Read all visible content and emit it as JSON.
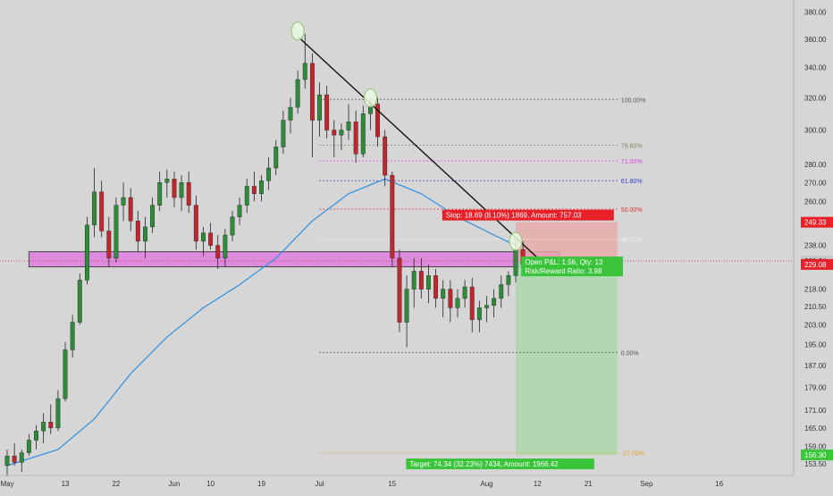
{
  "chart_data": {
    "type": "candlestick",
    "title": "",
    "symbol": "",
    "colors": {
      "up": "#2e8b3a",
      "down": "#c0262c",
      "wick": "#222222",
      "ma": "#2f8fe0",
      "trendline": "#111111",
      "zone_fill": "#e070e0",
      "stop_zone": "#e8a8a8",
      "target_zone": "#a8d8a8",
      "background": "#d6d6d6"
    },
    "x_axis": {
      "tick_labels": [
        "May",
        "13",
        "22",
        "Jun",
        "10",
        "19",
        "Jul",
        "15",
        "Aug",
        "12",
        "21",
        "Sep",
        "16"
      ],
      "range": [
        "2024-04-30",
        "2024-09-17"
      ]
    },
    "y_axis": {
      "scale": "log",
      "range": [
        150,
        386
      ],
      "tick_labels": [
        "380.00",
        "360.00",
        "340.00",
        "320.00",
        "300.00",
        "280.00",
        "270.00",
        "260.00",
        "238.00",
        "218.00",
        "210.50",
        "203.00",
        "195.00",
        "187.00",
        "179.00",
        "171.00",
        "165.00",
        "159.00",
        "153.50"
      ],
      "tick_values": [
        380,
        360,
        340,
        320,
        300,
        280,
        270,
        260,
        238,
        218,
        210.5,
        203,
        195,
        187,
        179,
        171,
        165,
        159,
        153.5
      ]
    },
    "candles": [
      {
        "date": "2024-05-01",
        "open": 153,
        "high": 158,
        "low": 150,
        "close": 156
      },
      {
        "date": "2024-05-02",
        "open": 156,
        "high": 160,
        "low": 153,
        "close": 154
      },
      {
        "date": "2024-05-03",
        "open": 154,
        "high": 158,
        "low": 151,
        "close": 157
      },
      {
        "date": "2024-05-06",
        "open": 157,
        "high": 163,
        "low": 156,
        "close": 161
      },
      {
        "date": "2024-05-07",
        "open": 161,
        "high": 166,
        "low": 158,
        "close": 164
      },
      {
        "date": "2024-05-08",
        "open": 164,
        "high": 170,
        "low": 160,
        "close": 167
      },
      {
        "date": "2024-05-09",
        "open": 167,
        "high": 173,
        "low": 163,
        "close": 165
      },
      {
        "date": "2024-05-10",
        "open": 165,
        "high": 178,
        "low": 164,
        "close": 175
      },
      {
        "date": "2024-05-13",
        "open": 175,
        "high": 196,
        "low": 174,
        "close": 193
      },
      {
        "date": "2024-05-14",
        "open": 193,
        "high": 207,
        "low": 190,
        "close": 204
      },
      {
        "date": "2024-05-15",
        "open": 204,
        "high": 225,
        "low": 203,
        "close": 222
      },
      {
        "date": "2024-05-16",
        "open": 222,
        "high": 252,
        "low": 220,
        "close": 248
      },
      {
        "date": "2024-05-17",
        "open": 248,
        "high": 278,
        "low": 242,
        "close": 265
      },
      {
        "date": "2024-05-20",
        "open": 265,
        "high": 271,
        "low": 242,
        "close": 245
      },
      {
        "date": "2024-05-21",
        "open": 245,
        "high": 252,
        "low": 228,
        "close": 232
      },
      {
        "date": "2024-05-22",
        "open": 232,
        "high": 262,
        "low": 230,
        "close": 258
      },
      {
        "date": "2024-05-23",
        "open": 258,
        "high": 270,
        "low": 250,
        "close": 262
      },
      {
        "date": "2024-05-24",
        "open": 262,
        "high": 267,
        "low": 245,
        "close": 250
      },
      {
        "date": "2024-05-27",
        "open": 250,
        "high": 255,
        "low": 235,
        "close": 240
      },
      {
        "date": "2024-05-28",
        "open": 240,
        "high": 252,
        "low": 232,
        "close": 247
      },
      {
        "date": "2024-05-29",
        "open": 247,
        "high": 262,
        "low": 244,
        "close": 258
      },
      {
        "date": "2024-05-30",
        "open": 258,
        "high": 276,
        "low": 255,
        "close": 270
      },
      {
        "date": "2024-05-31",
        "open": 270,
        "high": 277,
        "low": 262,
        "close": 272
      },
      {
        "date": "2024-06-03",
        "open": 272,
        "high": 276,
        "low": 257,
        "close": 262
      },
      {
        "date": "2024-06-04",
        "open": 262,
        "high": 274,
        "low": 255,
        "close": 270
      },
      {
        "date": "2024-06-05",
        "open": 270,
        "high": 276,
        "low": 254,
        "close": 258
      },
      {
        "date": "2024-06-06",
        "open": 258,
        "high": 263,
        "low": 236,
        "close": 240
      },
      {
        "date": "2024-06-07",
        "open": 240,
        "high": 247,
        "low": 233,
        "close": 244
      },
      {
        "date": "2024-06-10",
        "open": 244,
        "high": 249,
        "low": 236,
        "close": 238
      },
      {
        "date": "2024-06-11",
        "open": 238,
        "high": 243,
        "low": 227,
        "close": 232
      },
      {
        "date": "2024-06-12",
        "open": 232,
        "high": 246,
        "low": 228,
        "close": 243
      },
      {
        "date": "2024-06-13",
        "open": 243,
        "high": 255,
        "low": 240,
        "close": 252
      },
      {
        "date": "2024-06-14",
        "open": 252,
        "high": 262,
        "low": 248,
        "close": 258
      },
      {
        "date": "2024-06-17",
        "open": 258,
        "high": 272,
        "low": 254,
        "close": 268
      },
      {
        "date": "2024-06-18",
        "open": 268,
        "high": 276,
        "low": 260,
        "close": 264
      },
      {
        "date": "2024-06-19",
        "open": 264,
        "high": 274,
        "low": 260,
        "close": 271
      },
      {
        "date": "2024-06-20",
        "open": 271,
        "high": 284,
        "low": 266,
        "close": 278
      },
      {
        "date": "2024-06-21",
        "open": 278,
        "high": 294,
        "low": 274,
        "close": 290
      },
      {
        "date": "2024-06-24",
        "open": 290,
        "high": 312,
        "low": 286,
        "close": 306
      },
      {
        "date": "2024-06-25",
        "open": 306,
        "high": 320,
        "low": 298,
        "close": 314
      },
      {
        "date": "2024-06-26",
        "open": 314,
        "high": 338,
        "low": 310,
        "close": 332
      },
      {
        "date": "2024-06-27",
        "open": 332,
        "high": 364,
        "low": 326,
        "close": 343
      },
      {
        "date": "2024-06-28",
        "open": 343,
        "high": 350,
        "low": 284,
        "close": 306
      },
      {
        "date": "2024-07-01",
        "open": 306,
        "high": 330,
        "low": 296,
        "close": 322
      },
      {
        "date": "2024-07-02",
        "open": 322,
        "high": 328,
        "low": 295,
        "close": 300
      },
      {
        "date": "2024-07-03",
        "open": 300,
        "high": 306,
        "low": 284,
        "close": 297
      },
      {
        "date": "2024-07-04",
        "open": 297,
        "high": 304,
        "low": 288,
        "close": 300
      },
      {
        "date": "2024-07-05",
        "open": 300,
        "high": 316,
        "low": 294,
        "close": 305
      },
      {
        "date": "2024-07-08",
        "open": 305,
        "high": 312,
        "low": 281,
        "close": 286
      },
      {
        "date": "2024-07-09",
        "open": 286,
        "high": 315,
        "low": 284,
        "close": 310
      },
      {
        "date": "2024-07-10",
        "open": 310,
        "high": 320,
        "low": 300,
        "close": 316
      },
      {
        "date": "2024-07-11",
        "open": 316,
        "high": 320,
        "low": 290,
        "close": 296
      },
      {
        "date": "2024-07-12",
        "open": 296,
        "high": 300,
        "low": 268,
        "close": 274
      },
      {
        "date": "2024-07-15",
        "open": 274,
        "high": 276,
        "low": 228,
        "close": 232
      },
      {
        "date": "2024-07-16",
        "open": 232,
        "high": 236,
        "low": 200,
        "close": 204
      },
      {
        "date": "2024-07-17",
        "open": 204,
        "high": 224,
        "low": 194,
        "close": 218
      },
      {
        "date": "2024-07-18",
        "open": 218,
        "high": 232,
        "low": 210,
        "close": 226
      },
      {
        "date": "2024-07-19",
        "open": 226,
        "high": 232,
        "low": 214,
        "close": 218
      },
      {
        "date": "2024-07-22",
        "open": 218,
        "high": 229,
        "low": 212,
        "close": 224
      },
      {
        "date": "2024-07-23",
        "open": 224,
        "high": 227,
        "low": 210,
        "close": 214
      },
      {
        "date": "2024-07-24",
        "open": 214,
        "high": 222,
        "low": 206,
        "close": 218
      },
      {
        "date": "2024-07-25",
        "open": 218,
        "high": 222,
        "low": 204,
        "close": 210
      },
      {
        "date": "2024-07-26",
        "open": 210,
        "high": 218,
        "low": 206,
        "close": 214
      },
      {
        "date": "2024-07-29",
        "open": 214,
        "high": 222,
        "low": 210,
        "close": 219
      },
      {
        "date": "2024-07-30",
        "open": 219,
        "high": 223,
        "low": 200,
        "close": 205
      },
      {
        "date": "2024-07-31",
        "open": 205,
        "high": 213,
        "low": 200,
        "close": 210
      },
      {
        "date": "2024-08-01",
        "open": 210,
        "high": 215,
        "low": 204,
        "close": 211
      },
      {
        "date": "2024-08-02",
        "open": 211,
        "high": 218,
        "low": 206,
        "close": 214
      },
      {
        "date": "2024-08-05",
        "open": 214,
        "high": 224,
        "low": 210,
        "close": 220
      },
      {
        "date": "2024-08-06",
        "open": 220,
        "high": 226,
        "low": 215,
        "close": 224
      },
      {
        "date": "2024-08-07",
        "open": 224,
        "high": 242,
        "low": 221,
        "close": 236
      },
      {
        "date": "2024-08-08",
        "open": 236,
        "high": 240,
        "low": 226,
        "close": 229
      }
    ],
    "moving_average": {
      "points": [
        {
          "date": "2024-05-01",
          "value": 153
        },
        {
          "date": "2024-05-10",
          "value": 158
        },
        {
          "date": "2024-05-17",
          "value": 168
        },
        {
          "date": "2024-05-24",
          "value": 184
        },
        {
          "date": "2024-05-31",
          "value": 198
        },
        {
          "date": "2024-06-07",
          "value": 210
        },
        {
          "date": "2024-06-14",
          "value": 220
        },
        {
          "date": "2024-06-21",
          "value": 232
        },
        {
          "date": "2024-06-28",
          "value": 250
        },
        {
          "date": "2024-07-05",
          "value": 264
        },
        {
          "date": "2024-07-12",
          "value": 272
        },
        {
          "date": "2024-07-19",
          "value": 264
        },
        {
          "date": "2024-07-26",
          "value": 252
        },
        {
          "date": "2024-08-02",
          "value": 243
        },
        {
          "date": "2024-08-07",
          "value": 238
        }
      ]
    },
    "trendline": {
      "start": {
        "date": "2024-06-26",
        "value": 362
      },
      "end": {
        "date": "2024-08-14",
        "value": 226
      }
    },
    "highlight_circles": [
      {
        "date": "2024-06-26",
        "value": 366
      },
      {
        "date": "2024-07-10",
        "value": 320
      },
      {
        "date": "2024-08-07",
        "value": 240
      }
    ],
    "fib_levels": [
      {
        "label": "100.00%",
        "value": 319,
        "color": "#555555"
      },
      {
        "label": "78.60%",
        "value": 291,
        "color": "#7a8a5a"
      },
      {
        "label": "71.00%",
        "value": 282,
        "color": "#e040e0"
      },
      {
        "label": "61.80%",
        "value": 271,
        "color": "#3040d0"
      },
      {
        "label": "50.00%",
        "value": 256,
        "color": "#e03030"
      },
      {
        "label": "38.20%",
        "value": 241,
        "color": "#f0f0f0"
      },
      {
        "label": "0.00%",
        "value": 192,
        "color": "#555555"
      },
      {
        "label": "-27.00%",
        "value": 157,
        "color": "#e8a030"
      }
    ],
    "fib_range": {
      "start": "2024-07-01",
      "end": "2024-08-27"
    },
    "resistance_zone": {
      "start": "2024-05-06",
      "end": "2024-08-15",
      "low": 228,
      "high": 235
    },
    "position": {
      "start": "2024-08-07",
      "end": "2024-08-27",
      "entry": 230.64,
      "stop": 249.33,
      "target": 156.3,
      "stop_label": "Stop: 18.69 (8.10%) 1869, Amount: 757.03",
      "open_label": "Open P&L: 1.56, Qty: 13",
      "rr_label": "Risk/Reward Ratio: 3.98",
      "target_label": "Target: 74.34 (32.23%) 7434, Amount: 1966.42"
    },
    "reference_lines": [
      {
        "value": 230.64,
        "color": "#d03030"
      }
    ],
    "price_badges": [
      {
        "text": "249.33",
        "value": 249.33,
        "color": "#e8202a"
      },
      {
        "text": "230.64",
        "value": 230.64,
        "color": "#c8c8c8"
      },
      {
        "text": "229.08",
        "value": 229.08,
        "color": "#e8202a"
      },
      {
        "text": "156.30",
        "value": 156.3,
        "color": "#38c838"
      }
    ]
  }
}
